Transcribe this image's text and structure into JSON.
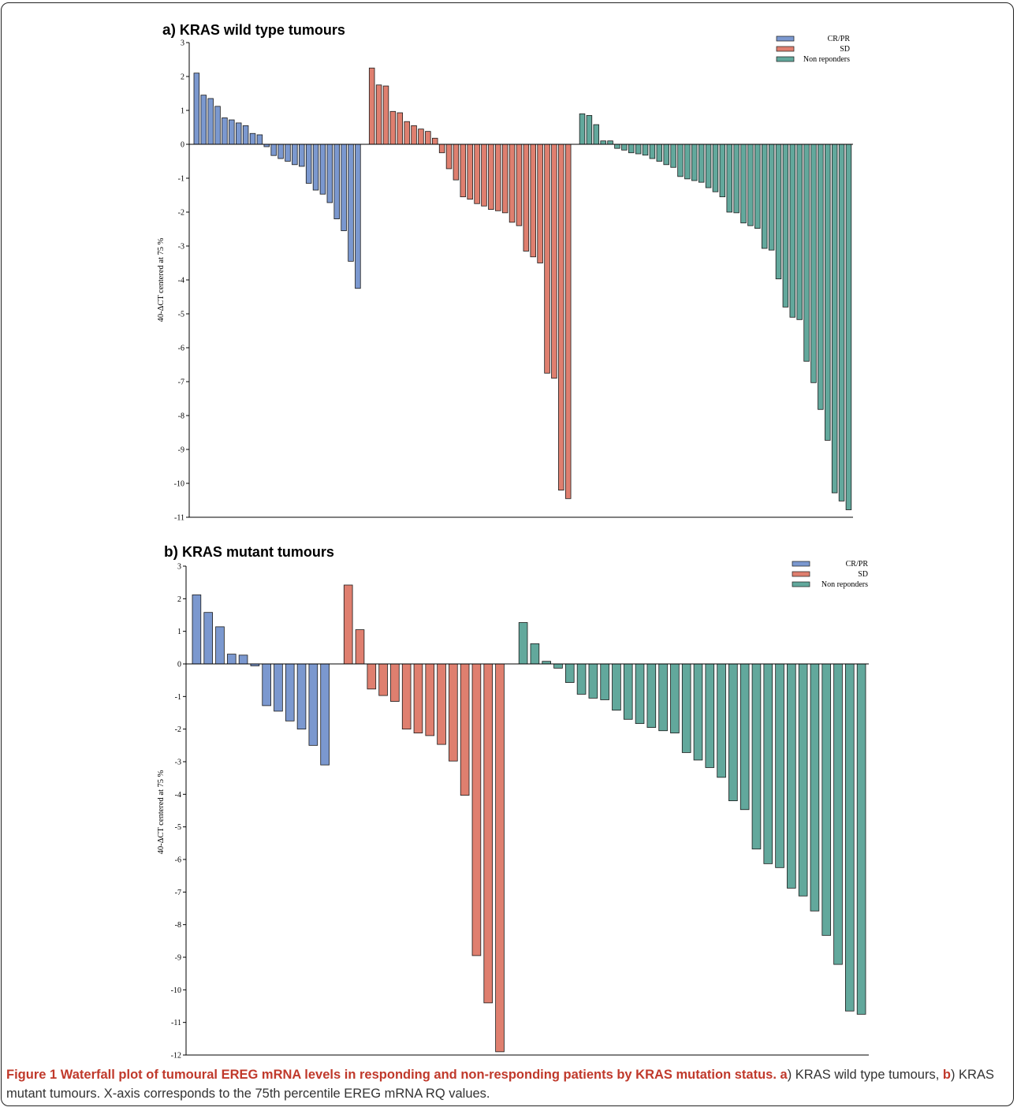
{
  "colors": {
    "crpr": "#7b98cf",
    "sd": "#df7f6f",
    "nonresp": "#62a89c",
    "caption_head": "#c0392b"
  },
  "legend_labels": [
    "CR/PR",
    "SD",
    "Non reponders"
  ],
  "chart_data": [
    {
      "type": "bar",
      "panel_label": "a)",
      "title": "KRAS wild type tumours",
      "ylabel": "40-ΔCT centered at 75 %",
      "ylim": [
        -11,
        3
      ],
      "yticks": [
        3,
        2,
        1,
        0,
        -1,
        -2,
        -3,
        -4,
        -5,
        -6,
        -7,
        -8,
        -9,
        -10,
        -11
      ],
      "legend_position": "top-right",
      "series": [
        {
          "name": "CR/PR",
          "values": [
            2.1,
            1.45,
            1.35,
            1.12,
            0.78,
            0.72,
            0.63,
            0.55,
            0.32,
            0.28,
            -0.07,
            -0.33,
            -0.42,
            -0.5,
            -0.6,
            -0.65,
            -1.15,
            -1.35,
            -1.47,
            -1.72,
            -2.2,
            -2.55,
            -3.45,
            -4.25
          ]
        },
        {
          "name": "SD",
          "values": [
            2.25,
            1.75,
            1.72,
            0.97,
            0.93,
            0.67,
            0.55,
            0.45,
            0.38,
            0.18,
            -0.25,
            -0.72,
            -1.05,
            -1.55,
            -1.62,
            -1.75,
            -1.82,
            -1.92,
            -1.96,
            -2.02,
            -2.3,
            -2.4,
            -3.15,
            -3.32,
            -3.5,
            -6.75,
            -6.9,
            -10.2,
            -10.45
          ]
        },
        {
          "name": "Non reponders",
          "values": [
            0.9,
            0.85,
            0.58,
            0.1,
            0.1,
            -0.12,
            -0.17,
            -0.25,
            -0.28,
            -0.32,
            -0.42,
            -0.5,
            -0.6,
            -0.68,
            -0.95,
            -1.02,
            -1.07,
            -1.12,
            -1.28,
            -1.4,
            -1.55,
            -2.0,
            -2.02,
            -2.32,
            -2.4,
            -2.48,
            -3.07,
            -3.12,
            -3.97,
            -4.8,
            -5.1,
            -5.17,
            -6.4,
            -7.03,
            -7.82,
            -8.73,
            -10.28,
            -10.52,
            -10.78
          ]
        }
      ]
    },
    {
      "type": "bar",
      "panel_label": "b)",
      "title": "KRAS mutant tumours",
      "ylabel": "40-ΔCT centered at 75 %",
      "ylim": [
        -12,
        3
      ],
      "yticks": [
        3,
        2,
        1,
        0,
        -1,
        -2,
        -3,
        -4,
        -5,
        -6,
        -7,
        -8,
        -9,
        -10,
        -11,
        -12
      ],
      "legend_position": "top-right",
      "series": [
        {
          "name": "CR/PR",
          "values": [
            2.12,
            1.58,
            1.14,
            0.3,
            0.27,
            -0.06,
            -1.28,
            -1.45,
            -1.75,
            -2.0,
            -2.5,
            -3.1
          ]
        },
        {
          "name": "SD",
          "values": [
            2.42,
            1.05,
            -0.77,
            -0.97,
            -1.15,
            -2.0,
            -2.12,
            -2.2,
            -2.47,
            -2.98,
            -4.03,
            -8.95,
            -10.4,
            -11.9
          ]
        },
        {
          "name": "Non reponders",
          "values": [
            1.27,
            0.62,
            0.08,
            -0.13,
            -0.57,
            -0.93,
            -1.05,
            -1.1,
            -1.42,
            -1.7,
            -1.83,
            -1.95,
            -2.05,
            -2.12,
            -2.72,
            -2.95,
            -3.18,
            -3.48,
            -4.2,
            -4.47,
            -5.68,
            -6.13,
            -6.25,
            -6.88,
            -7.12,
            -7.58,
            -8.33,
            -9.22,
            -10.65,
            -10.75
          ]
        }
      ]
    }
  ],
  "caption": {
    "head": "Figure 1 Waterfall plot of tumoural EREG mRNA levels in responding and non-responding patients by KRAS mutation status.",
    "part_a_letter": "a",
    "part_a_text": ") KRAS wild type tumours, ",
    "part_b_letter": "b",
    "part_b_text": ") KRAS mutant tumours. X-axis corresponds to the 75th percentile EREG mRNA RQ values."
  }
}
